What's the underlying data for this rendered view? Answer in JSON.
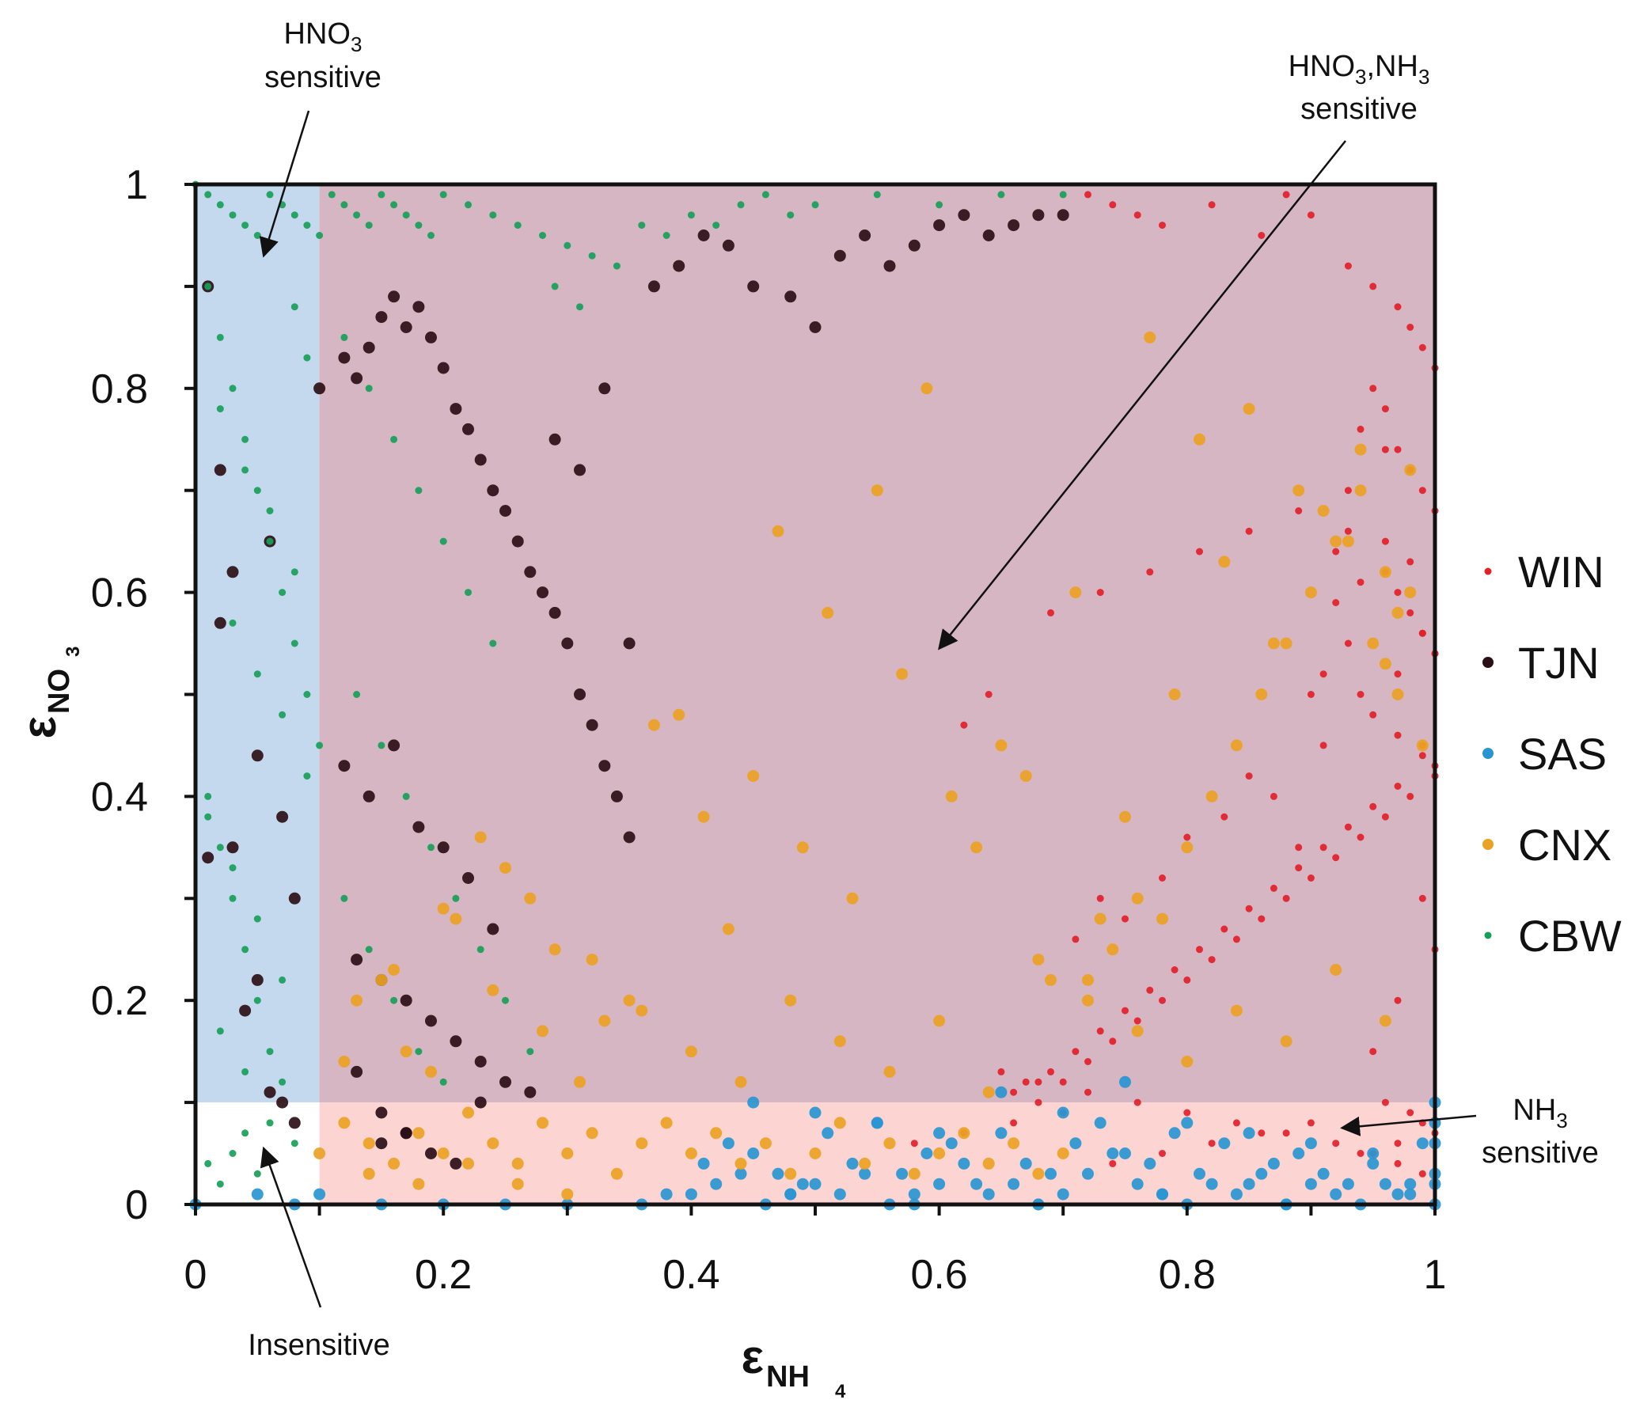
{
  "chart_data": {
    "type": "scatter",
    "title": "",
    "xlabel": "ε",
    "xlabel_sub": "NH",
    "xlabel_subsub": "4",
    "ylabel": "ε",
    "ylabel_sub": "NO",
    "ylabel_subsub": "3",
    "xlim": [
      0,
      1
    ],
    "ylim": [
      0,
      1
    ],
    "x_ticks": [
      0,
      0.2,
      0.4,
      0.6,
      0.8,
      1
    ],
    "y_ticks": [
      0,
      0.2,
      0.4,
      0.6,
      0.8,
      1
    ],
    "x_tick_labels": [
      "0",
      "0.2",
      "0.4",
      "0.6",
      "0.8",
      "1"
    ],
    "y_tick_labels": [
      "0",
      "0.2",
      "0.4",
      "0.6",
      "0.8",
      "1"
    ],
    "minor_tick_step": 0.1,
    "grid": false,
    "legend_position": "right",
    "regions": [
      {
        "name": "HNO3 sensitive",
        "x": [
          0,
          0.1
        ],
        "y": [
          0.1,
          1
        ],
        "color": "#c5d9ee"
      },
      {
        "name": "HNO3,NH3 sensitive",
        "x": [
          0.1,
          1
        ],
        "y": [
          0.1,
          1
        ],
        "color": "#d6b6c3"
      },
      {
        "name": "NH3 sensitive",
        "x": [
          0.1,
          1
        ],
        "y": [
          0,
          0.1
        ],
        "color": "#fcd4d2"
      },
      {
        "name": "Insensitive",
        "x": [
          0,
          0.1
        ],
        "y": [
          0,
          0.1
        ],
        "color": "#ffffff"
      }
    ],
    "annotations": [
      {
        "line1": "HNO",
        "sub1": "3",
        "line2": "sensitive",
        "arrow_to": [
          0.055,
          0.93
        ]
      },
      {
        "line1": "HNO",
        "sub1": "3",
        "mid": ",NH",
        "sub2": "3",
        "line2": "sensitive",
        "arrow_to": [
          0.6,
          0.545
        ]
      },
      {
        "line1": "NH",
        "sub1": "3",
        "line2": "sensitive",
        "arrow_to": [
          0.925,
          0.075
        ]
      },
      {
        "line1": "Insensitive",
        "arrow_to": [
          0.055,
          0.055
        ]
      }
    ],
    "series": [
      {
        "name": "WIN",
        "color": "#e2202a",
        "marker_size": "small",
        "x": [
          0.72,
          0.74,
          0.76,
          0.78,
          0.82,
          0.86,
          0.88,
          0.9,
          0.93,
          0.95,
          0.97,
          0.98,
          0.99,
          1.0,
          0.95,
          0.96,
          0.94,
          0.97,
          0.98,
          0.99,
          1.0,
          0.93,
          0.92,
          0.96,
          0.97,
          0.98,
          0.99,
          1.0,
          0.91,
          0.9,
          0.95,
          0.97,
          0.99,
          1.0,
          0.98,
          0.96,
          0.94,
          0.92,
          0.9,
          0.88,
          0.86,
          0.84,
          0.82,
          0.8,
          0.78,
          0.76,
          0.74,
          0.72,
          0.7,
          0.68,
          0.66,
          0.64,
          0.62,
          0.99,
          1.0,
          0.97,
          0.95,
          0.93,
          0.91,
          0.89,
          0.87,
          0.85,
          0.83,
          0.81,
          0.79,
          0.77,
          0.75,
          0.73,
          0.71,
          0.69,
          0.67,
          0.96,
          0.98,
          0.94,
          0.92,
          0.99,
          1.0,
          0.97,
          0.95,
          0.93,
          0.91,
          0.89,
          0.87,
          0.85,
          0.83,
          0.8,
          0.78,
          0.75,
          0.73,
          0.71,
          0.96,
          0.98,
          0.99,
          1.0,
          0.97,
          0.94,
          0.9,
          0.86,
          0.82,
          0.78,
          0.74,
          0.7,
          0.66,
          0.62,
          0.58,
          0.99,
          1.0,
          0.97,
          0.95,
          0.92,
          0.88,
          0.84,
          0.8,
          0.76,
          0.72,
          0.68,
          0.65,
          0.98,
          0.96,
          0.93,
          0.89,
          0.85,
          0.81,
          0.77,
          0.73,
          0.69,
          0.99,
          1.0,
          0.97,
          0.94
        ],
        "y": [
          0.99,
          0.98,
          0.97,
          0.96,
          0.98,
          0.95,
          0.99,
          0.97,
          0.92,
          0.9,
          0.88,
          0.86,
          0.84,
          0.82,
          0.8,
          0.78,
          0.76,
          0.74,
          0.72,
          0.7,
          0.68,
          0.66,
          0.64,
          0.62,
          0.6,
          0.58,
          0.56,
          0.54,
          0.52,
          0.5,
          0.48,
          0.46,
          0.44,
          0.42,
          0.4,
          0.38,
          0.36,
          0.34,
          0.32,
          0.3,
          0.28,
          0.26,
          0.24,
          0.22,
          0.2,
          0.18,
          0.16,
          0.14,
          0.12,
          0.1,
          0.11,
          0.5,
          0.47,
          0.45,
          0.43,
          0.41,
          0.39,
          0.37,
          0.35,
          0.33,
          0.31,
          0.29,
          0.27,
          0.25,
          0.23,
          0.21,
          0.19,
          0.17,
          0.15,
          0.13,
          0.12,
          0.65,
          0.63,
          0.61,
          0.59,
          0.3,
          0.25,
          0.2,
          0.15,
          0.55,
          0.45,
          0.35,
          0.4,
          0.42,
          0.38,
          0.36,
          0.32,
          0.28,
          0.3,
          0.26,
          0.1,
          0.09,
          0.08,
          0.07,
          0.06,
          0.05,
          0.08,
          0.07,
          0.06,
          0.05,
          0.04,
          0.09,
          0.08,
          0.07,
          0.06,
          0.03,
          0.02,
          0.04,
          0.05,
          0.06,
          0.07,
          0.08,
          0.09,
          0.1,
          0.11,
          0.12,
          0.13,
          0.72,
          0.74,
          0.7,
          0.68,
          0.66,
          0.64,
          0.62,
          0.6,
          0.58,
          0.56,
          0.54,
          0.52,
          0.5
        ]
      },
      {
        "name": "TJN",
        "color": "#2b0f17",
        "marker_size": "large",
        "x": [
          0.01,
          0.02,
          0.03,
          0.05,
          0.06,
          0.07,
          0.08,
          0.1,
          0.12,
          0.13,
          0.14,
          0.15,
          0.16,
          0.17,
          0.18,
          0.19,
          0.2,
          0.21,
          0.22,
          0.23,
          0.24,
          0.25,
          0.26,
          0.27,
          0.28,
          0.29,
          0.3,
          0.31,
          0.32,
          0.33,
          0.34,
          0.35,
          0.37,
          0.39,
          0.41,
          0.43,
          0.45,
          0.48,
          0.5,
          0.52,
          0.54,
          0.56,
          0.58,
          0.6,
          0.62,
          0.64,
          0.66,
          0.68,
          0.7,
          0.12,
          0.14,
          0.16,
          0.18,
          0.2,
          0.22,
          0.24,
          0.13,
          0.15,
          0.17,
          0.19,
          0.21,
          0.23,
          0.25,
          0.27,
          0.29,
          0.31,
          0.33,
          0.35,
          0.05,
          0.04,
          0.02,
          0.03,
          0.01,
          0.06,
          0.07,
          0.08,
          0.15,
          0.17,
          0.19,
          0.21,
          0.23,
          0.13,
          0.15,
          0.17
        ],
        "y": [
          0.9,
          0.72,
          0.62,
          0.44,
          0.65,
          0.38,
          0.3,
          0.8,
          0.83,
          0.81,
          0.84,
          0.87,
          0.89,
          0.86,
          0.88,
          0.85,
          0.82,
          0.78,
          0.76,
          0.73,
          0.7,
          0.68,
          0.65,
          0.62,
          0.6,
          0.58,
          0.55,
          0.5,
          0.47,
          0.43,
          0.4,
          0.36,
          0.9,
          0.92,
          0.95,
          0.94,
          0.9,
          0.89,
          0.86,
          0.93,
          0.95,
          0.92,
          0.94,
          0.96,
          0.97,
          0.95,
          0.96,
          0.97,
          0.97,
          0.43,
          0.4,
          0.45,
          0.37,
          0.35,
          0.32,
          0.27,
          0.24,
          0.22,
          0.2,
          0.18,
          0.16,
          0.14,
          0.12,
          0.11,
          0.75,
          0.72,
          0.8,
          0.55,
          0.22,
          0.19,
          0.57,
          0.35,
          0.34,
          0.11,
          0.1,
          0.08,
          0.06,
          0.07,
          0.05,
          0.04,
          0.1,
          0.13,
          0.09,
          0.07
        ]
      },
      {
        "name": "SAS",
        "color": "#2996d3",
        "marker_size": "large",
        "x": [
          0.4,
          0.42,
          0.44,
          0.46,
          0.48,
          0.5,
          0.52,
          0.54,
          0.56,
          0.58,
          0.6,
          0.62,
          0.64,
          0.66,
          0.68,
          0.7,
          0.72,
          0.74,
          0.76,
          0.78,
          0.8,
          0.82,
          0.84,
          0.86,
          0.88,
          0.9,
          0.92,
          0.94,
          0.96,
          0.98,
          1.0,
          0.41,
          0.43,
          0.45,
          0.47,
          0.49,
          0.51,
          0.53,
          0.55,
          0.57,
          0.59,
          0.61,
          0.63,
          0.65,
          0.67,
          0.69,
          0.71,
          0.73,
          0.75,
          0.77,
          0.79,
          0.81,
          0.83,
          0.85,
          0.87,
          0.89,
          0.91,
          0.93,
          0.95,
          0.97,
          0.99,
          0.45,
          0.5,
          0.55,
          0.6,
          0.65,
          0.7,
          0.75,
          0.8,
          0.85,
          0.9,
          0.95,
          1.0,
          0.48,
          0.58,
          0.68,
          0.78,
          0.88,
          0.98,
          0.36,
          0.38,
          0.3,
          0.25,
          0.2,
          0.15,
          0.1,
          0.05,
          0.08,
          0.0,
          1.0,
          1.0,
          1.0,
          1.0
        ],
        "y": [
          0.01,
          0.02,
          0.03,
          0.0,
          0.01,
          0.02,
          0.01,
          0.03,
          0.0,
          0.01,
          0.02,
          0.04,
          0.01,
          0.02,
          0.0,
          0.01,
          0.03,
          0.05,
          0.02,
          0.01,
          0.0,
          0.02,
          0.01,
          0.03,
          0.0,
          0.02,
          0.01,
          0.0,
          0.02,
          0.01,
          0.0,
          0.04,
          0.06,
          0.05,
          0.03,
          0.02,
          0.07,
          0.04,
          0.08,
          0.03,
          0.05,
          0.06,
          0.02,
          0.07,
          0.04,
          0.03,
          0.06,
          0.08,
          0.05,
          0.04,
          0.07,
          0.03,
          0.06,
          0.02,
          0.04,
          0.05,
          0.03,
          0.02,
          0.04,
          0.01,
          0.06,
          0.1,
          0.09,
          0.08,
          0.07,
          0.11,
          0.09,
          0.12,
          0.08,
          0.07,
          0.06,
          0.05,
          0.1,
          0.01,
          0.0,
          0.0,
          0.01,
          0.0,
          0.02,
          0.0,
          0.01,
          0.0,
          0.0,
          0.0,
          0.0,
          0.01,
          0.01,
          0.0,
          0.0,
          0.03,
          0.06,
          0.08,
          0.02
        ]
      },
      {
        "name": "CNX",
        "color": "#eba224",
        "marker_size": "large",
        "x": [
          0.12,
          0.14,
          0.16,
          0.18,
          0.2,
          0.22,
          0.24,
          0.26,
          0.28,
          0.3,
          0.32,
          0.34,
          0.36,
          0.38,
          0.4,
          0.42,
          0.44,
          0.46,
          0.48,
          0.5,
          0.52,
          0.54,
          0.56,
          0.58,
          0.6,
          0.62,
          0.64,
          0.66,
          0.68,
          0.7,
          0.72,
          0.74,
          0.76,
          0.78,
          0.8,
          0.82,
          0.84,
          0.86,
          0.88,
          0.9,
          0.92,
          0.94,
          0.96,
          0.97,
          0.98,
          0.13,
          0.17,
          0.21,
          0.25,
          0.29,
          0.33,
          0.37,
          0.41,
          0.45,
          0.49,
          0.53,
          0.57,
          0.61,
          0.65,
          0.69,
          0.73,
          0.77,
          0.81,
          0.85,
          0.89,
          0.93,
          0.95,
          0.97,
          0.99,
          0.15,
          0.19,
          0.23,
          0.27,
          0.31,
          0.35,
          0.39,
          0.43,
          0.47,
          0.51,
          0.55,
          0.59,
          0.63,
          0.67,
          0.71,
          0.75,
          0.79,
          0.83,
          0.87,
          0.91,
          0.94,
          0.96,
          0.98,
          0.12,
          0.16,
          0.2,
          0.24,
          0.28,
          0.32,
          0.36,
          0.4,
          0.44,
          0.48,
          0.52,
          0.56,
          0.6,
          0.64,
          0.68,
          0.72,
          0.76,
          0.8,
          0.84,
          0.88,
          0.92,
          0.96,
          0.1,
          0.14,
          0.18,
          0.22,
          0.26,
          0.3
        ],
        "y": [
          0.08,
          0.06,
          0.04,
          0.07,
          0.05,
          0.09,
          0.06,
          0.04,
          0.08,
          0.05,
          0.07,
          0.03,
          0.06,
          0.08,
          0.05,
          0.07,
          0.04,
          0.06,
          0.03,
          0.05,
          0.08,
          0.04,
          0.06,
          0.03,
          0.05,
          0.07,
          0.04,
          0.06,
          0.03,
          0.05,
          0.2,
          0.25,
          0.3,
          0.28,
          0.35,
          0.4,
          0.45,
          0.5,
          0.55,
          0.6,
          0.65,
          0.7,
          0.62,
          0.58,
          0.72,
          0.2,
          0.15,
          0.28,
          0.33,
          0.25,
          0.18,
          0.47,
          0.38,
          0.42,
          0.35,
          0.3,
          0.52,
          0.4,
          0.45,
          0.22,
          0.28,
          0.85,
          0.75,
          0.78,
          0.7,
          0.65,
          0.55,
          0.5,
          0.45,
          0.22,
          0.13,
          0.36,
          0.3,
          0.12,
          0.2,
          0.48,
          0.27,
          0.66,
          0.58,
          0.7,
          0.8,
          0.35,
          0.42,
          0.6,
          0.38,
          0.5,
          0.63,
          0.55,
          0.68,
          0.74,
          0.53,
          0.6,
          0.14,
          0.23,
          0.29,
          0.21,
          0.17,
          0.24,
          0.19,
          0.15,
          0.12,
          0.2,
          0.16,
          0.13,
          0.18,
          0.11,
          0.24,
          0.22,
          0.17,
          0.14,
          0.19,
          0.16,
          0.23,
          0.18,
          0.05,
          0.03,
          0.02,
          0.04,
          0.02,
          0.01
        ]
      },
      {
        "name": "CBW",
        "color": "#17a05a",
        "marker_size": "small",
        "x": [
          0.0,
          0.01,
          0.02,
          0.03,
          0.04,
          0.05,
          0.06,
          0.07,
          0.08,
          0.09,
          0.1,
          0.11,
          0.12,
          0.13,
          0.14,
          0.15,
          0.16,
          0.17,
          0.18,
          0.19,
          0.2,
          0.22,
          0.24,
          0.26,
          0.28,
          0.3,
          0.32,
          0.34,
          0.36,
          0.38,
          0.4,
          0.42,
          0.44,
          0.46,
          0.48,
          0.5,
          0.55,
          0.6,
          0.65,
          0.7,
          0.01,
          0.02,
          0.03,
          0.04,
          0.05,
          0.06,
          0.07,
          0.08,
          0.09,
          0.1,
          0.01,
          0.02,
          0.03,
          0.04,
          0.05,
          0.06,
          0.07,
          0.08,
          0.09,
          0.02,
          0.04,
          0.06,
          0.08,
          0.03,
          0.05,
          0.07,
          0.09,
          0.01,
          0.03,
          0.05,
          0.07,
          0.02,
          0.04,
          0.06,
          0.08,
          0.01,
          0.02,
          0.03,
          0.04,
          0.05,
          0.12,
          0.14,
          0.16,
          0.18,
          0.2,
          0.22,
          0.24,
          0.13,
          0.15,
          0.17,
          0.19,
          0.21,
          0.23,
          0.25,
          0.27,
          0.29,
          0.31,
          0.12,
          0.14,
          0.16,
          0.18,
          0.2
        ],
        "y": [
          1.0,
          0.99,
          0.98,
          0.97,
          0.96,
          0.95,
          0.99,
          0.98,
          0.97,
          0.96,
          0.95,
          0.99,
          0.98,
          0.97,
          0.96,
          0.99,
          0.98,
          0.97,
          0.96,
          0.95,
          0.99,
          0.98,
          0.97,
          0.96,
          0.95,
          0.94,
          0.93,
          0.92,
          0.96,
          0.95,
          0.97,
          0.96,
          0.98,
          0.99,
          0.97,
          0.98,
          0.99,
          0.98,
          0.99,
          0.99,
          0.9,
          0.85,
          0.8,
          0.75,
          0.7,
          0.65,
          0.6,
          0.55,
          0.5,
          0.45,
          0.4,
          0.35,
          0.3,
          0.25,
          0.2,
          0.15,
          0.12,
          0.88,
          0.83,
          0.78,
          0.72,
          0.68,
          0.62,
          0.57,
          0.52,
          0.48,
          0.42,
          0.38,
          0.33,
          0.28,
          0.22,
          0.17,
          0.13,
          0.08,
          0.06,
          0.04,
          0.02,
          0.05,
          0.07,
          0.03,
          0.85,
          0.8,
          0.75,
          0.7,
          0.65,
          0.6,
          0.55,
          0.5,
          0.45,
          0.4,
          0.35,
          0.3,
          0.25,
          0.2,
          0.15,
          0.9,
          0.88,
          0.3,
          0.25,
          0.2,
          0.15,
          0.12
        ]
      }
    ]
  }
}
